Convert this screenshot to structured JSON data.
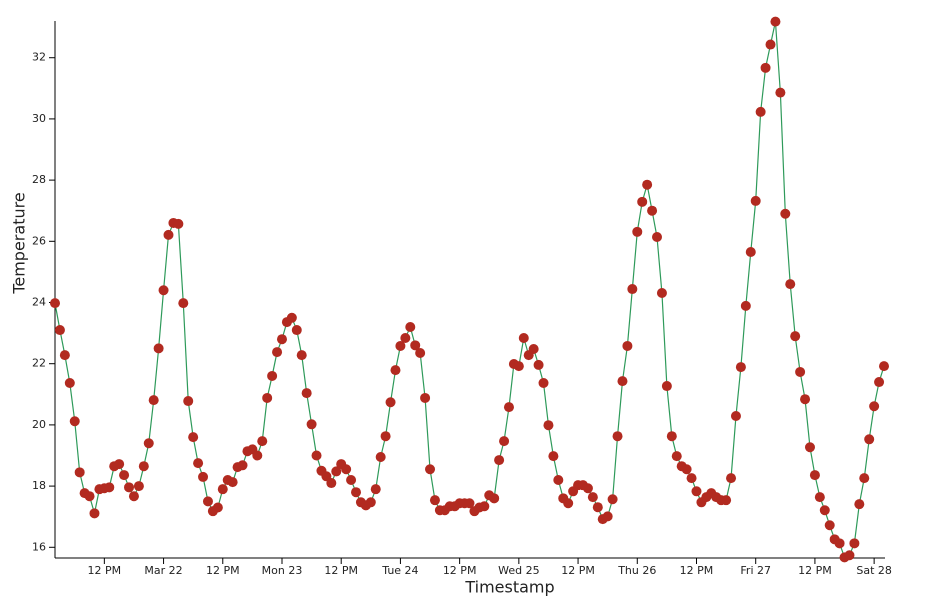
{
  "chart_data": {
    "type": "line",
    "x_label": "Timestamp",
    "y_label": "Temperature",
    "x": [
      "Mar 21 02:00",
      "Mar 21 03:00",
      "Mar 21 04:00",
      "Mar 21 05:00",
      "Mar 21 06:00",
      "Mar 21 07:00",
      "Mar 21 08:00",
      "Mar 21 09:00",
      "Mar 21 10:00",
      "Mar 21 11:00",
      "Mar 21 12:00",
      "Mar 21 13:00",
      "Mar 21 14:00",
      "Mar 21 15:00",
      "Mar 21 16:00",
      "Mar 21 17:00",
      "Mar 21 18:00",
      "Mar 21 19:00",
      "Mar 21 20:00",
      "Mar 21 21:00",
      "Mar 21 22:00",
      "Mar 21 23:00",
      "Mar 22 00:00",
      "Mar 22 01:00",
      "Mar 22 02:00",
      "Mar 22 03:00",
      "Mar 22 04:00",
      "Mar 22 05:00",
      "Mar 22 06:00",
      "Mar 22 07:00",
      "Mar 22 08:00",
      "Mar 22 09:00",
      "Mar 22 10:00",
      "Mar 22 11:00",
      "Mar 22 12:00",
      "Mar 22 13:00",
      "Mar 22 14:00",
      "Mar 22 15:00",
      "Mar 22 16:00",
      "Mar 22 17:00",
      "Mar 22 18:00",
      "Mar 22 19:00",
      "Mar 22 20:00",
      "Mar 22 21:00",
      "Mar 22 22:00",
      "Mar 22 23:00",
      "Mar 23 00:00",
      "Mar 23 01:00",
      "Mar 23 02:00",
      "Mar 23 03:00",
      "Mar 23 04:00",
      "Mar 23 05:00",
      "Mar 23 06:00",
      "Mar 23 07:00",
      "Mar 23 08:00",
      "Mar 23 09:00",
      "Mar 23 10:00",
      "Mar 23 11:00",
      "Mar 23 12:00",
      "Mar 23 13:00",
      "Mar 23 14:00",
      "Mar 23 15:00",
      "Mar 23 16:00",
      "Mar 23 17:00",
      "Mar 23 18:00",
      "Mar 23 19:00",
      "Mar 23 20:00",
      "Mar 23 21:00",
      "Mar 23 22:00",
      "Mar 23 23:00",
      "Mar 24 00:00",
      "Mar 24 01:00",
      "Mar 24 02:00",
      "Mar 24 03:00",
      "Mar 24 04:00",
      "Mar 24 05:00",
      "Mar 24 06:00",
      "Mar 24 07:00",
      "Mar 24 08:00",
      "Mar 24 09:00",
      "Mar 24 10:00",
      "Mar 24 11:00",
      "Mar 24 12:00",
      "Mar 24 13:00",
      "Mar 24 14:00",
      "Mar 24 15:00",
      "Mar 24 16:00",
      "Mar 24 17:00",
      "Mar 24 18:00",
      "Mar 24 19:00",
      "Mar 24 20:00",
      "Mar 24 21:00",
      "Mar 24 22:00",
      "Mar 24 23:00",
      "Mar 25 00:00",
      "Mar 25 01:00",
      "Mar 25 02:00",
      "Mar 25 03:00",
      "Mar 25 04:00",
      "Mar 25 05:00",
      "Mar 25 06:00",
      "Mar 25 07:00",
      "Mar 25 08:00",
      "Mar 25 09:00",
      "Mar 25 10:00",
      "Mar 25 11:00",
      "Mar 25 12:00",
      "Mar 25 13:00",
      "Mar 25 14:00",
      "Mar 25 15:00",
      "Mar 25 16:00",
      "Mar 25 17:00",
      "Mar 25 18:00",
      "Mar 25 19:00",
      "Mar 25 20:00",
      "Mar 25 21:00",
      "Mar 25 22:00",
      "Mar 25 23:00",
      "Mar 26 00:00",
      "Mar 26 01:00",
      "Mar 26 02:00",
      "Mar 26 03:00",
      "Mar 26 04:00",
      "Mar 26 05:00",
      "Mar 26 06:00",
      "Mar 26 07:00",
      "Mar 26 08:00",
      "Mar 26 09:00",
      "Mar 26 10:00",
      "Mar 26 11:00",
      "Mar 26 12:00",
      "Mar 26 13:00",
      "Mar 26 14:00",
      "Mar 26 15:00",
      "Mar 26 16:00",
      "Mar 26 17:00",
      "Mar 26 18:00",
      "Mar 26 19:00",
      "Mar 26 20:00",
      "Mar 26 21:00",
      "Mar 26 22:00",
      "Mar 26 23:00",
      "Mar 27 00:00",
      "Mar 27 01:00",
      "Mar 27 02:00",
      "Mar 27 03:00",
      "Mar 27 04:00",
      "Mar 27 05:00",
      "Mar 27 06:00",
      "Mar 27 07:00",
      "Mar 27 08:00",
      "Mar 27 09:00",
      "Mar 27 10:00",
      "Mar 27 11:00",
      "Mar 27 12:00",
      "Mar 27 13:00",
      "Mar 27 14:00",
      "Mar 27 15:00",
      "Mar 27 16:00",
      "Mar 27 17:00",
      "Mar 27 18:00",
      "Mar 27 19:00",
      "Mar 27 20:00",
      "Mar 27 21:00",
      "Mar 27 22:00",
      "Mar 27 23:00",
      "Mar 28 00:00",
      "Mar 28 01:00",
      "Mar 28 02:00"
    ],
    "series": [
      {
        "name": "Temperature",
        "color": "#2e9a5a",
        "marker_color": "#b22a20",
        "values": [
          23.98,
          23.1,
          22.28,
          21.37,
          20.12,
          18.45,
          17.77,
          17.67,
          17.11,
          17.9,
          17.93,
          17.96,
          18.65,
          18.72,
          18.36,
          17.96,
          17.67,
          18.0,
          18.65,
          19.4,
          20.81,
          22.5,
          24.4,
          26.21,
          26.6,
          26.57,
          23.98,
          20.78,
          19.6,
          18.75,
          18.3,
          17.5,
          17.18,
          17.3,
          17.9,
          18.2,
          18.13,
          18.62,
          18.68,
          19.14,
          19.2,
          19.0,
          19.47,
          20.88,
          21.6,
          22.38,
          22.8,
          23.36,
          23.5,
          23.1,
          22.28,
          21.04,
          20.02,
          19.0,
          18.5,
          18.32,
          18.1,
          18.48,
          18.72,
          18.55,
          18.2,
          17.8,
          17.47,
          17.37,
          17.47,
          17.9,
          18.95,
          19.63,
          20.74,
          21.79,
          22.58,
          22.84,
          23.2,
          22.6,
          22.35,
          20.88,
          18.55,
          17.54,
          17.21,
          17.21,
          17.34,
          17.34,
          17.44,
          17.44,
          17.44,
          17.18,
          17.3,
          17.34,
          17.7,
          17.6,
          18.85,
          19.47,
          20.58,
          21.99,
          21.92,
          22.84,
          22.28,
          22.48,
          21.96,
          21.37,
          19.99,
          18.98,
          18.2,
          17.6,
          17.44,
          17.83,
          18.03,
          18.03,
          17.93,
          17.64,
          17.31,
          16.92,
          17.01,
          17.57,
          19.63,
          21.43,
          22.58,
          24.44,
          26.31,
          27.29,
          27.85,
          27.0,
          26.14,
          24.31,
          21.27,
          19.63,
          18.98,
          18.65,
          18.55,
          18.26,
          17.83,
          17.47,
          17.64,
          17.77,
          17.64,
          17.54,
          17.54,
          18.26,
          20.29,
          21.89,
          23.89,
          25.65,
          27.32,
          30.23,
          31.67,
          32.43,
          33.18,
          30.86,
          26.9,
          24.6,
          22.9,
          21.73,
          20.84,
          19.27,
          18.36,
          17.64,
          17.21,
          16.72,
          16.26,
          16.13,
          15.67,
          15.74,
          16.13,
          17.41,
          18.26,
          19.53,
          20.61,
          21.4,
          21.92
        ]
      }
    ],
    "xlim": [
      "Mar 21 02:00",
      "Mar 28 02:00"
    ],
    "xticks": [
      {
        "value": "Mar 21 12:00",
        "label": "12 PM"
      },
      {
        "value": "Mar 22 00:00",
        "label": "Mar 22"
      },
      {
        "value": "Mar 22 12:00",
        "label": "12 PM"
      },
      {
        "value": "Mar 23 00:00",
        "label": "Mon 23"
      },
      {
        "value": "Mar 23 12:00",
        "label": "12 PM"
      },
      {
        "value": "Mar 24 00:00",
        "label": "Tue 24"
      },
      {
        "value": "Mar 24 12:00",
        "label": "12 PM"
      },
      {
        "value": "Mar 25 00:00",
        "label": "Wed 25"
      },
      {
        "value": "Mar 25 12:00",
        "label": "12 PM"
      },
      {
        "value": "Mar 26 00:00",
        "label": "Thu 26"
      },
      {
        "value": "Mar 26 12:00",
        "label": "12 PM"
      },
      {
        "value": "Mar 27 00:00",
        "label": "Fri 27"
      },
      {
        "value": "Mar 27 12:00",
        "label": "12 PM"
      },
      {
        "value": "Mar 28 00:00",
        "label": "Sat 28"
      }
    ],
    "ylim": [
      15.65,
      33.2
    ],
    "yticks": [
      16,
      18,
      20,
      22,
      24,
      26,
      28,
      30,
      32
    ],
    "grid": false
  }
}
